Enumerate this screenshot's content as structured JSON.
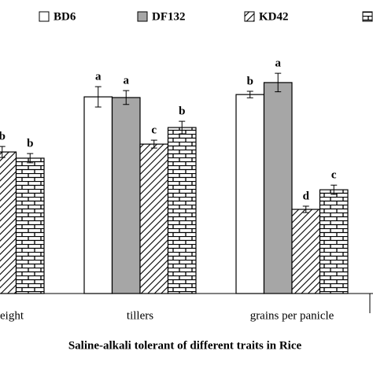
{
  "chart_data": {
    "type": "bar",
    "title": "Saline-alkali tolerant of different traits in Rice",
    "categories": [
      "eight",
      "tillers",
      "grains per panicle"
    ],
    "series": [
      {
        "name": "BD6",
        "color": "#ffffff",
        "pattern": null,
        "values": [
          null,
          85.3,
          86.3
        ],
        "errors": [
          null,
          4.4,
          1.4
        ],
        "letters": [
          null,
          "a",
          "b"
        ]
      },
      {
        "name": "DF132",
        "color": "#a6a6a6",
        "pattern": null,
        "values": [
          null,
          85,
          91.5
        ],
        "errors": [
          null,
          3,
          4
        ],
        "letters": [
          null,
          "a",
          "a"
        ]
      },
      {
        "name": "KD42",
        "color": "#ffffff",
        "pattern": "hatch",
        "values": [
          61.4,
          64.8,
          36.5
        ],
        "errors": [
          2.4,
          1.7,
          1.4
        ],
        "letters": [
          "b",
          "c",
          "d"
        ]
      },
      {
        "name": null,
        "color": "#ffffff",
        "pattern": "brick",
        "values": [
          58.7,
          72,
          45
        ],
        "errors": [
          2,
          2.7,
          2
        ],
        "letters": [
          "b",
          "b",
          "c"
        ]
      }
    ],
    "ylim": [
      0,
      100
    ]
  }
}
